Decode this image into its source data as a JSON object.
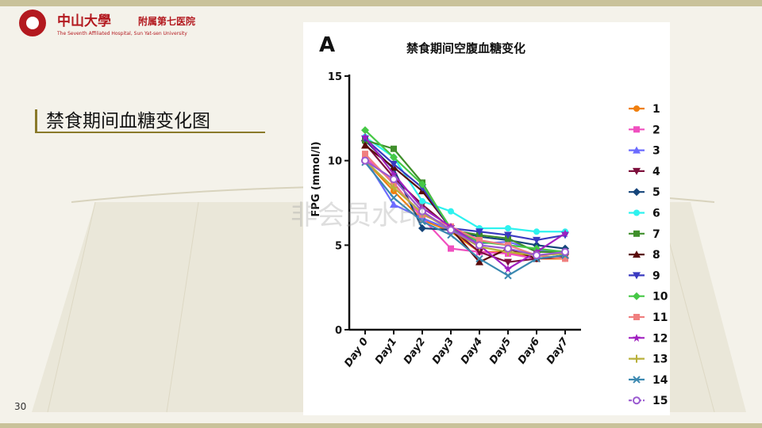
{
  "header": {
    "logo_cn": "中山大學",
    "logo_cn_sub": "附属第七医院",
    "logo_en": "The Seventh Affiliated Hospital, Sun Yat-sen University"
  },
  "slide": {
    "title": "禁食期间血糖变化图",
    "page_number": "30",
    "watermark": "非会员水印"
  },
  "chart_data": {
    "type": "line",
    "panel_label": "A",
    "title": "禁食期间空腹血糖变化",
    "xlabel": "",
    "ylabel": "FPG (mmol/l)",
    "ylim": [
      0,
      15
    ],
    "yticks": [
      0,
      5,
      10,
      15
    ],
    "categories": [
      "Day 0",
      "Day1",
      "Day2",
      "Day3",
      "Day4",
      "Day5",
      "Day6",
      "Day7"
    ],
    "legend_position": "right",
    "series": [
      {
        "name": "1",
        "color": "#f07f0e",
        "marker": "circle",
        "values": [
          10.0,
          8.2,
          6.5,
          5.8,
          4.6,
          4.6,
          4.2,
          4.2
        ]
      },
      {
        "name": "2",
        "color": "#f04fbf",
        "marker": "square",
        "values": [
          10.2,
          8.7,
          6.6,
          4.8,
          4.6,
          4.5,
          4.2,
          4.3
        ]
      },
      {
        "name": "3",
        "color": "#6b6bff",
        "marker": "triangle",
        "values": [
          10.1,
          7.4,
          6.6,
          5.9,
          5.1,
          5.2,
          4.7,
          4.6
        ]
      },
      {
        "name": "4",
        "color": "#7d0f3c",
        "marker": "triangle-down",
        "values": [
          11.0,
          9.0,
          7.4,
          6.0,
          4.6,
          4.0,
          4.2,
          4.3
        ]
      },
      {
        "name": "5",
        "color": "#15457a",
        "marker": "diamond",
        "values": [
          11.2,
          9.5,
          6.0,
          5.9,
          5.5,
          5.3,
          5.0,
          4.8
        ]
      },
      {
        "name": "6",
        "color": "#2ef2ef",
        "marker": "circle",
        "values": [
          11.4,
          10.2,
          7.6,
          7.0,
          6.0,
          6.0,
          5.8,
          5.8
        ]
      },
      {
        "name": "7",
        "color": "#3f8f2b",
        "marker": "square",
        "values": [
          11.2,
          10.7,
          8.7,
          5.9,
          5.6,
          5.4,
          4.6,
          4.6
        ]
      },
      {
        "name": "8",
        "color": "#5a0a0a",
        "marker": "triangle",
        "values": [
          10.9,
          9.6,
          8.2,
          6.0,
          4.0,
          4.8,
          4.2,
          4.4
        ]
      },
      {
        "name": "9",
        "color": "#3a3ac0",
        "marker": "triangle-down",
        "values": [
          11.3,
          9.8,
          8.4,
          6.0,
          5.8,
          5.6,
          5.3,
          5.6
        ]
      },
      {
        "name": "10",
        "color": "#46c846",
        "marker": "diamond",
        "values": [
          11.8,
          10.2,
          8.6,
          6.0,
          5.2,
          5.0,
          4.8,
          4.6
        ]
      },
      {
        "name": "11",
        "color": "#f07f7f",
        "marker": "square",
        "values": [
          10.4,
          8.6,
          6.8,
          6.1,
          5.3,
          5.0,
          4.4,
          4.2
        ]
      },
      {
        "name": "12",
        "color": "#a020c0",
        "marker": "star",
        "values": [
          11.4,
          9.2,
          7.2,
          6.1,
          5.0,
          3.6,
          4.6,
          5.7
        ]
      },
      {
        "name": "13",
        "color": "#b8b03a",
        "marker": "plus",
        "values": [
          10.0,
          8.4,
          6.9,
          5.9,
          4.9,
          4.6,
          4.4,
          4.5
        ]
      },
      {
        "name": "14",
        "color": "#3a88b0",
        "marker": "cross",
        "values": [
          9.9,
          7.8,
          6.4,
          5.6,
          4.2,
          3.2,
          4.2,
          4.4
        ]
      },
      {
        "name": "15",
        "color": "#9a5ad0",
        "marker": "circle-open",
        "values": [
          10.0,
          8.9,
          7.0,
          5.9,
          5.0,
          4.8,
          4.4,
          4.6
        ]
      }
    ]
  }
}
